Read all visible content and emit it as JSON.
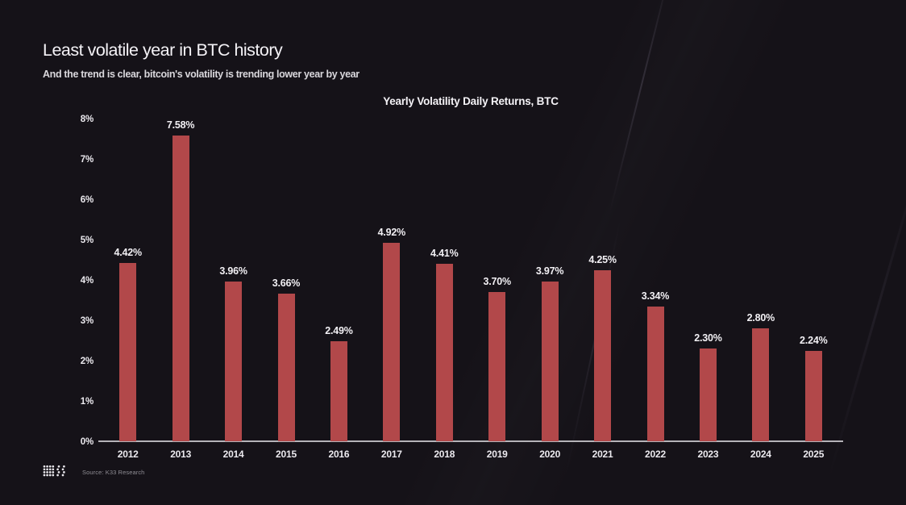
{
  "header": {
    "title": "Least volatile year in BTC history",
    "subtitle": "And the trend is clear, bitcoin's volatility is trending lower year by year"
  },
  "chart_data": {
    "type": "bar",
    "title": "Yearly Volatility Daily Returns, BTC",
    "categories": [
      "2012",
      "2013",
      "2014",
      "2015",
      "2016",
      "2017",
      "2018",
      "2019",
      "2020",
      "2021",
      "2022",
      "2023",
      "2024",
      "2025"
    ],
    "values": [
      4.42,
      7.58,
      3.96,
      3.66,
      2.49,
      4.92,
      4.41,
      3.7,
      3.97,
      4.25,
      3.34,
      2.3,
      2.8,
      2.24
    ],
    "value_labels": [
      "4.42%",
      "7.58%",
      "3.96%",
      "3.66%",
      "2.49%",
      "4.92%",
      "4.41%",
      "3.70%",
      "3.97%",
      "4.25%",
      "3.34%",
      "2.30%",
      "2.80%",
      "2.24%"
    ],
    "xlabel": "",
    "ylabel": "",
    "ylim": [
      0,
      8
    ],
    "ytick_labels": [
      "0%",
      "1%",
      "2%",
      "3%",
      "4%",
      "5%",
      "6%",
      "7%",
      "8%"
    ],
    "grid": false,
    "legend": false,
    "bar_color": "#b2484a",
    "axis_line_color": "#b5b3b8"
  },
  "footer": {
    "source": "Source: K33 Research",
    "logo": "k33-dot-logo"
  },
  "colors": {
    "background": "#151218",
    "text_primary": "#f4f2f6",
    "text_secondary": "#d9d7dc",
    "source_text": "#8f8d94"
  }
}
